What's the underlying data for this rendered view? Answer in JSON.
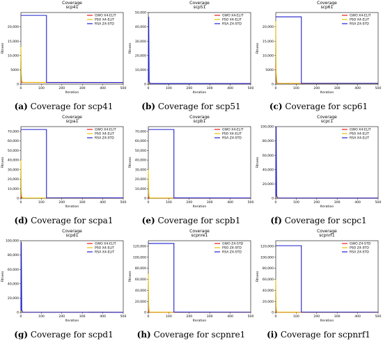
{
  "chart_data": [
    {
      "type": "line",
      "title": "Coverage",
      "subtitle": "scp41",
      "caption_letter": "(a)",
      "caption_text": " Coverage for scp41",
      "xlabel": "Iteration",
      "ylabel": "Fitness",
      "xlim": [
        0,
        500
      ],
      "ylim": [
        0,
        25000
      ],
      "xticks": [
        0,
        100,
        200,
        300,
        400,
        500
      ],
      "yticks": [
        0,
        5000,
        10000,
        15000,
        20000
      ],
      "ytick_labels": [
        "0",
        "5000",
        "10,000",
        "15,000",
        "20,000"
      ],
      "series": [
        {
          "name": "GWO X4-ELIT",
          "color": "#e41a1c",
          "x": [
            0,
            1,
            3,
            5,
            500
          ],
          "y": [
            1200,
            900,
            700,
            600,
            580
          ]
        },
        {
          "name": "PSO X4-ELIT",
          "color": "#e6c100",
          "x": [
            0,
            2,
            4,
            8,
            500
          ],
          "y": [
            13000,
            4000,
            1200,
            650,
            600
          ]
        },
        {
          "name": "RSA Z4-STD",
          "color": "#1f1fcc",
          "x": [
            0,
            1,
            1,
            125,
            125,
            500
          ],
          "y": [
            24000,
            24000,
            24000,
            24000,
            600,
            600
          ]
        }
      ]
    },
    {
      "type": "line",
      "title": "Coverage",
      "subtitle": "scp51",
      "caption_letter": "(b)",
      "caption_text": " Coverage for scp51",
      "xlabel": "Iteration",
      "ylabel": "Fitness",
      "xlim": [
        0,
        500
      ],
      "ylim": [
        0,
        50000
      ],
      "xticks": [
        0,
        100,
        200,
        300,
        400,
        500
      ],
      "yticks": [
        0,
        10000,
        20000,
        30000,
        40000,
        50000
      ],
      "ytick_labels": [
        "0",
        "10,000",
        "20,000",
        "30,000",
        "40,000",
        "50,000"
      ],
      "series": [
        {
          "name": "GWO X4-ELIT",
          "color": "#e41a1c",
          "x": [
            0,
            1,
            3,
            500
          ],
          "y": [
            1500,
            700,
            500,
            450
          ]
        },
        {
          "name": "PSO X4-ELIT",
          "color": "#e6c100",
          "x": [
            0,
            2,
            4,
            500
          ],
          "y": [
            6000,
            900,
            500,
            450
          ]
        },
        {
          "name": "RSA Z4-STD",
          "color": "#1f1fcc",
          "x": [
            0,
            2,
            4,
            8,
            500
          ],
          "y": [
            1000,
            47000,
            2000,
            450,
            450
          ]
        }
      ]
    },
    {
      "type": "line",
      "title": "Coverage",
      "subtitle": "scp61",
      "caption_letter": "(c)",
      "caption_text": " Coverage for scp61",
      "xlabel": "Iteration",
      "ylabel": "Fitness",
      "xlim": [
        0,
        500
      ],
      "ylim": [
        0,
        25000
      ],
      "xticks": [
        0,
        100,
        200,
        300,
        400,
        500
      ],
      "yticks": [
        0,
        5000,
        10000,
        15000,
        20000
      ],
      "ytick_labels": [
        "0",
        "5000",
        "10,000",
        "15,000",
        "20,000"
      ],
      "series": [
        {
          "name": "GWO X4-ELIT",
          "color": "#e41a1c",
          "x": [
            0,
            2,
            4,
            6,
            500
          ],
          "y": [
            6500,
            2500,
            800,
            300,
            250
          ]
        },
        {
          "name": "PSO X4-ELIT",
          "color": "#e6c100",
          "x": [
            0,
            1,
            2,
            5,
            8,
            500
          ],
          "y": [
            22000,
            12000,
            4000,
            1000,
            300,
            250
          ]
        },
        {
          "name": "RSA Z4-STD",
          "color": "#1f1fcc",
          "x": [
            0,
            125,
            125,
            500
          ],
          "y": [
            23500,
            23500,
            300,
            300
          ]
        }
      ]
    },
    {
      "type": "line",
      "title": "Coverage",
      "subtitle": "scpa1",
      "caption_letter": "(d)",
      "caption_text": " Coverage for scpa1",
      "xlabel": "Iteration",
      "ylabel": "Fitness",
      "xlim": [
        0,
        500
      ],
      "ylim": [
        0,
        75000
      ],
      "xticks": [
        0,
        100,
        200,
        300,
        400,
        500
      ],
      "yticks": [
        0,
        10000,
        20000,
        30000,
        40000,
        50000,
        60000,
        70000
      ],
      "ytick_labels": [
        "0",
        "10,000",
        "20,000",
        "30,000",
        "40,000",
        "50,000",
        "60,000",
        "70,000"
      ],
      "series": [
        {
          "name": "GWO X4-ELIT",
          "color": "#e41a1c",
          "x": [
            0,
            2,
            4,
            500
          ],
          "y": [
            3000,
            900,
            400,
            300
          ]
        },
        {
          "name": "PSO X4-ELIT",
          "color": "#e6c100",
          "x": [
            0,
            2,
            4,
            8,
            500
          ],
          "y": [
            40000,
            8000,
            1500,
            400,
            300
          ]
        },
        {
          "name": "RSA Z4-STD",
          "color": "#1f1fcc",
          "x": [
            0,
            125,
            125,
            500
          ],
          "y": [
            72000,
            72000,
            600,
            400
          ]
        }
      ]
    },
    {
      "type": "line",
      "title": "Coverage",
      "subtitle": "scpb1",
      "caption_letter": "(e)",
      "caption_text": " Coverage for scpb1",
      "xlabel": "Iteration",
      "ylabel": "Fitness",
      "xlim": [
        0,
        500
      ],
      "ylim": [
        0,
        75000
      ],
      "xticks": [
        0,
        100,
        200,
        300,
        400,
        500
      ],
      "yticks": [
        0,
        10000,
        20000,
        30000,
        40000,
        50000,
        60000,
        70000
      ],
      "ytick_labels": [
        "0",
        "10,000",
        "20,000",
        "30,000",
        "40,000",
        "50,000",
        "60,000",
        "70,000"
      ],
      "series": [
        {
          "name": "GWO X4-ELIT",
          "color": "#e41a1c",
          "x": [
            0,
            2,
            4,
            500
          ],
          "y": [
            2500,
            700,
            300,
            200
          ]
        },
        {
          "name": "PSO X4-ELIT",
          "color": "#e6c100",
          "x": [
            0,
            2,
            4,
            8,
            500
          ],
          "y": [
            30000,
            6000,
            1200,
            300,
            200
          ]
        },
        {
          "name": "RSA Z4-STD",
          "color": "#1f1fcc",
          "x": [
            0,
            125,
            125,
            500
          ],
          "y": [
            72000,
            72000,
            400,
            300
          ]
        }
      ]
    },
    {
      "type": "line",
      "title": "Coverage",
      "subtitle": "scpc1",
      "caption_letter": "(f)",
      "caption_text": " Coverage for scpc1",
      "xlabel": "Iteration",
      "ylabel": "Fitness",
      "xlim": [
        0,
        500
      ],
      "ylim": [
        0,
        100000
      ],
      "xticks": [
        0,
        100,
        200,
        300,
        400,
        500
      ],
      "yticks": [
        0,
        20000,
        40000,
        60000,
        80000,
        100000
      ],
      "ytick_labels": [
        "0",
        "20,000",
        "40,000",
        "60,000",
        "80,000",
        "100,000"
      ],
      "series": [
        {
          "name": "GWO X4-ELIT",
          "color": "#e41a1c",
          "x": [
            0,
            2,
            4,
            500
          ],
          "y": [
            3000,
            800,
            400,
            300
          ]
        },
        {
          "name": "PSO X4-ELIT",
          "color": "#e6c100",
          "x": [
            0,
            2,
            4,
            500
          ],
          "y": [
            12000,
            1500,
            400,
            300
          ]
        },
        {
          "name": "RSA X4-ELIT",
          "color": "#1f1fcc",
          "x": [
            0,
            2,
            4,
            8,
            500
          ],
          "y": [
            2000,
            100000,
            5000,
            400,
            300
          ]
        }
      ]
    },
    {
      "type": "line",
      "title": "Coverage",
      "subtitle": "scpd1",
      "caption_letter": "(g)",
      "caption_text": " Coverage for scpd1",
      "xlabel": "Iteration",
      "ylabel": "Fitness",
      "xlim": [
        0,
        500
      ],
      "ylim": [
        0,
        100000
      ],
      "xticks": [
        0,
        100,
        200,
        300,
        400,
        500
      ],
      "yticks": [
        0,
        20000,
        40000,
        60000,
        80000,
        100000
      ],
      "ytick_labels": [
        "0",
        "20,000",
        "40,000",
        "60,000",
        "80,000",
        "100,000"
      ],
      "series": [
        {
          "name": "GWO X4-ELIT",
          "color": "#e41a1c",
          "x": [
            0,
            2,
            4,
            500
          ],
          "y": [
            3000,
            800,
            200,
            100
          ]
        },
        {
          "name": "PSO X4-ELIT",
          "color": "#e6c100",
          "x": [
            0,
            2,
            4,
            500
          ],
          "y": [
            10000,
            1200,
            200,
            100
          ]
        },
        {
          "name": "RSA X4-ELIT",
          "color": "#1f1fcc",
          "x": [
            0,
            2,
            4,
            8,
            500
          ],
          "y": [
            2000,
            98000,
            4000,
            200,
            100
          ]
        }
      ]
    },
    {
      "type": "line",
      "title": "Coverage",
      "subtitle": "scpnre1",
      "caption_letter": "(h)",
      "caption_text": " Coverage for scpnre1",
      "xlabel": "Iteration",
      "ylabel": "Fitness",
      "xlim": [
        0,
        500
      ],
      "ylim": [
        0,
        130000
      ],
      "xticks": [
        0,
        100,
        200,
        300,
        400,
        500
      ],
      "yticks": [
        0,
        20000,
        40000,
        60000,
        80000,
        100000,
        120000
      ],
      "ytick_labels": [
        "0",
        "20,000",
        "40,000",
        "60,000",
        "80,000",
        "100,000",
        "120,000"
      ],
      "series": [
        {
          "name": "GWO Z4-STD",
          "color": "#e41a1c",
          "x": [
            0,
            2,
            4,
            500
          ],
          "y": [
            5000,
            1500,
            300,
            200
          ]
        },
        {
          "name": "PSO Z4-STD",
          "color": "#e6c100",
          "x": [
            0,
            2,
            4,
            8,
            500
          ],
          "y": [
            70000,
            12000,
            1500,
            300,
            200
          ]
        },
        {
          "name": "RSA Z4-STD",
          "color": "#1f1fcc",
          "x": [
            0,
            125,
            125,
            500
          ],
          "y": [
            125000,
            125000,
            600,
            300
          ]
        }
      ]
    },
    {
      "type": "line",
      "title": "Coverage",
      "subtitle": "scpnrf1",
      "caption_letter": "(i)",
      "caption_text": " Coverage for scpnrf1",
      "xlabel": "Iteration",
      "ylabel": "Fitness",
      "xlim": [
        0,
        500
      ],
      "ylim": [
        0,
        130000
      ],
      "xticks": [
        0,
        100,
        200,
        300,
        400,
        500
      ],
      "yticks": [
        0,
        20000,
        40000,
        60000,
        80000,
        100000,
        120000
      ],
      "ytick_labels": [
        "0",
        "20,000",
        "40,000",
        "60,000",
        "80,000",
        "100,000",
        "120,000"
      ],
      "series": [
        {
          "name": "GWO Z4-STD",
          "color": "#e41a1c",
          "x": [
            0,
            2,
            4,
            500
          ],
          "y": [
            5000,
            1500,
            300,
            200
          ]
        },
        {
          "name": "PSO Z4-STD",
          "color": "#e6c100",
          "x": [
            0,
            2,
            4,
            8,
            500
          ],
          "y": [
            60000,
            10000,
            1500,
            300,
            200
          ]
        },
        {
          "name": "RSA Z4-STD",
          "color": "#1f1fcc",
          "x": [
            0,
            125,
            125,
            500
          ],
          "y": [
            121000,
            121000,
            600,
            300
          ]
        }
      ]
    }
  ]
}
